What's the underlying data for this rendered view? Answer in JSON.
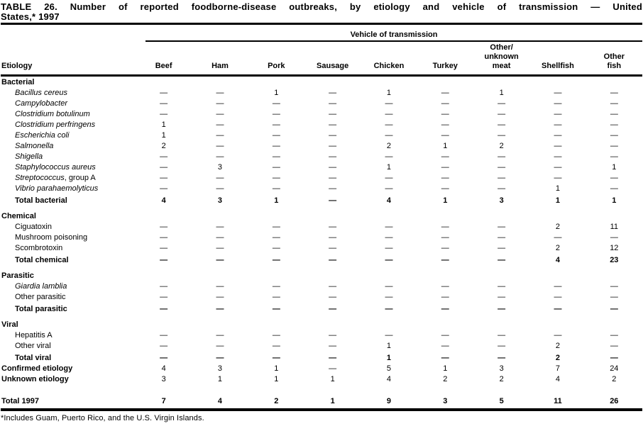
{
  "title_lines": [
    "TABLE 26. Number of reported foodborne-disease outbreaks, by etiology and vehicle of transmission — United",
    "States,* 1997"
  ],
  "table": {
    "spanner": "Vehicle of transmission",
    "etiology_header": "Etiology",
    "columns": [
      "Beef",
      "Ham",
      "Pork",
      "Sausage",
      "Chicken",
      "Turkey",
      "Other/\nunknown\nmeat",
      "Shellfish",
      "Other\nfish"
    ],
    "rows": [
      {
        "type": "section",
        "label": "Bacterial"
      },
      {
        "type": "item",
        "italic": true,
        "label": "Bacillus cereus",
        "values": [
          "—",
          "—",
          "1",
          "—",
          "1",
          "—",
          "1",
          "—",
          "—"
        ]
      },
      {
        "type": "item",
        "italic": true,
        "label": "Campylobacter",
        "values": [
          "—",
          "—",
          "—",
          "—",
          "—",
          "—",
          "—",
          "—",
          "—"
        ]
      },
      {
        "type": "item",
        "italic": true,
        "label": "Clostridium botulinum",
        "values": [
          "—",
          "—",
          "—",
          "—",
          "—",
          "—",
          "—",
          "—",
          "—"
        ]
      },
      {
        "type": "item",
        "italic": true,
        "label": "Clostridium perfringens",
        "values": [
          "1",
          "—",
          "—",
          "—",
          "—",
          "—",
          "—",
          "—",
          "—"
        ]
      },
      {
        "type": "item",
        "italic": true,
        "label": "Escherichia coli",
        "values": [
          "1",
          "—",
          "—",
          "—",
          "—",
          "—",
          "—",
          "—",
          "—"
        ]
      },
      {
        "type": "item",
        "italic": true,
        "label": "Salmonella",
        "values": [
          "2",
          "—",
          "—",
          "—",
          "2",
          "1",
          "2",
          "—",
          "—"
        ]
      },
      {
        "type": "item",
        "italic": true,
        "label": "Shigella",
        "values": [
          "—",
          "—",
          "—",
          "—",
          "—",
          "—",
          "—",
          "—",
          "—"
        ]
      },
      {
        "type": "item",
        "italic": true,
        "label": "Staphylococcus aureus",
        "values": [
          "—",
          "3",
          "—",
          "—",
          "1",
          "—",
          "—",
          "—",
          "1"
        ]
      },
      {
        "type": "item",
        "italic": true,
        "label": "Streptococcus",
        "suffix": ", group A",
        "values": [
          "—",
          "—",
          "—",
          "—",
          "—",
          "—",
          "—",
          "—",
          "—"
        ]
      },
      {
        "type": "item",
        "italic": true,
        "label": "Vibrio parahaemolyticus",
        "values": [
          "—",
          "—",
          "—",
          "—",
          "—",
          "—",
          "—",
          "1",
          "—"
        ]
      },
      {
        "type": "total",
        "label": "Total bacterial",
        "values": [
          "4",
          "3",
          "1",
          "—",
          "4",
          "1",
          "3",
          "1",
          "1"
        ]
      },
      {
        "type": "section",
        "label": "Chemical"
      },
      {
        "type": "item",
        "label": "Ciguatoxin",
        "values": [
          "—",
          "—",
          "—",
          "—",
          "—",
          "—",
          "—",
          "2",
          "11"
        ]
      },
      {
        "type": "item",
        "label": "Mushroom poisoning",
        "values": [
          "—",
          "—",
          "—",
          "—",
          "—",
          "—",
          "—",
          "—",
          "—"
        ]
      },
      {
        "type": "item",
        "label": "Scombrotoxin",
        "values": [
          "—",
          "—",
          "—",
          "—",
          "—",
          "—",
          "—",
          "2",
          "12"
        ]
      },
      {
        "type": "total",
        "label": "Total chemical",
        "values": [
          "—",
          "—",
          "—",
          "—",
          "—",
          "—",
          "—",
          "4",
          "23"
        ]
      },
      {
        "type": "section",
        "label": "Parasitic"
      },
      {
        "type": "item",
        "italic": true,
        "label": "Giardia lamblia",
        "values": [
          "—",
          "—",
          "—",
          "—",
          "—",
          "—",
          "—",
          "—",
          "—"
        ]
      },
      {
        "type": "item",
        "label": "Other parasitic",
        "values": [
          "—",
          "—",
          "—",
          "—",
          "—",
          "—",
          "—",
          "—",
          "—"
        ]
      },
      {
        "type": "total",
        "label": "Total parasitic",
        "values": [
          "—",
          "—",
          "—",
          "—",
          "—",
          "—",
          "—",
          "—",
          "—"
        ]
      },
      {
        "type": "section",
        "label": "Viral"
      },
      {
        "type": "item",
        "label": "Hepatitis A",
        "values": [
          "—",
          "—",
          "—",
          "—",
          "—",
          "—",
          "—",
          "—",
          "—"
        ]
      },
      {
        "type": "item",
        "label": "Other viral",
        "values": [
          "—",
          "—",
          "—",
          "—",
          "1",
          "—",
          "—",
          "2",
          "—"
        ]
      },
      {
        "type": "total",
        "label": "Total viral",
        "values": [
          "—",
          "—",
          "—",
          "—",
          "1",
          "—",
          "—",
          "2",
          "—"
        ]
      },
      {
        "type": "summary",
        "label": "Confirmed etiology",
        "values": [
          "4",
          "3",
          "1",
          "—",
          "5",
          "1",
          "3",
          "7",
          "24"
        ]
      },
      {
        "type": "summary",
        "label": "Unknown etiology",
        "values": [
          "3",
          "1",
          "1",
          "1",
          "4",
          "2",
          "2",
          "4",
          "2"
        ]
      },
      {
        "type": "grand",
        "label": "Total 1997",
        "values": [
          "7",
          "4",
          "2",
          "1",
          "9",
          "3",
          "5",
          "11",
          "26"
        ]
      }
    ]
  },
  "footnote": "*Includes Guam, Puerto Rico, and the U.S. Virgin Islands."
}
